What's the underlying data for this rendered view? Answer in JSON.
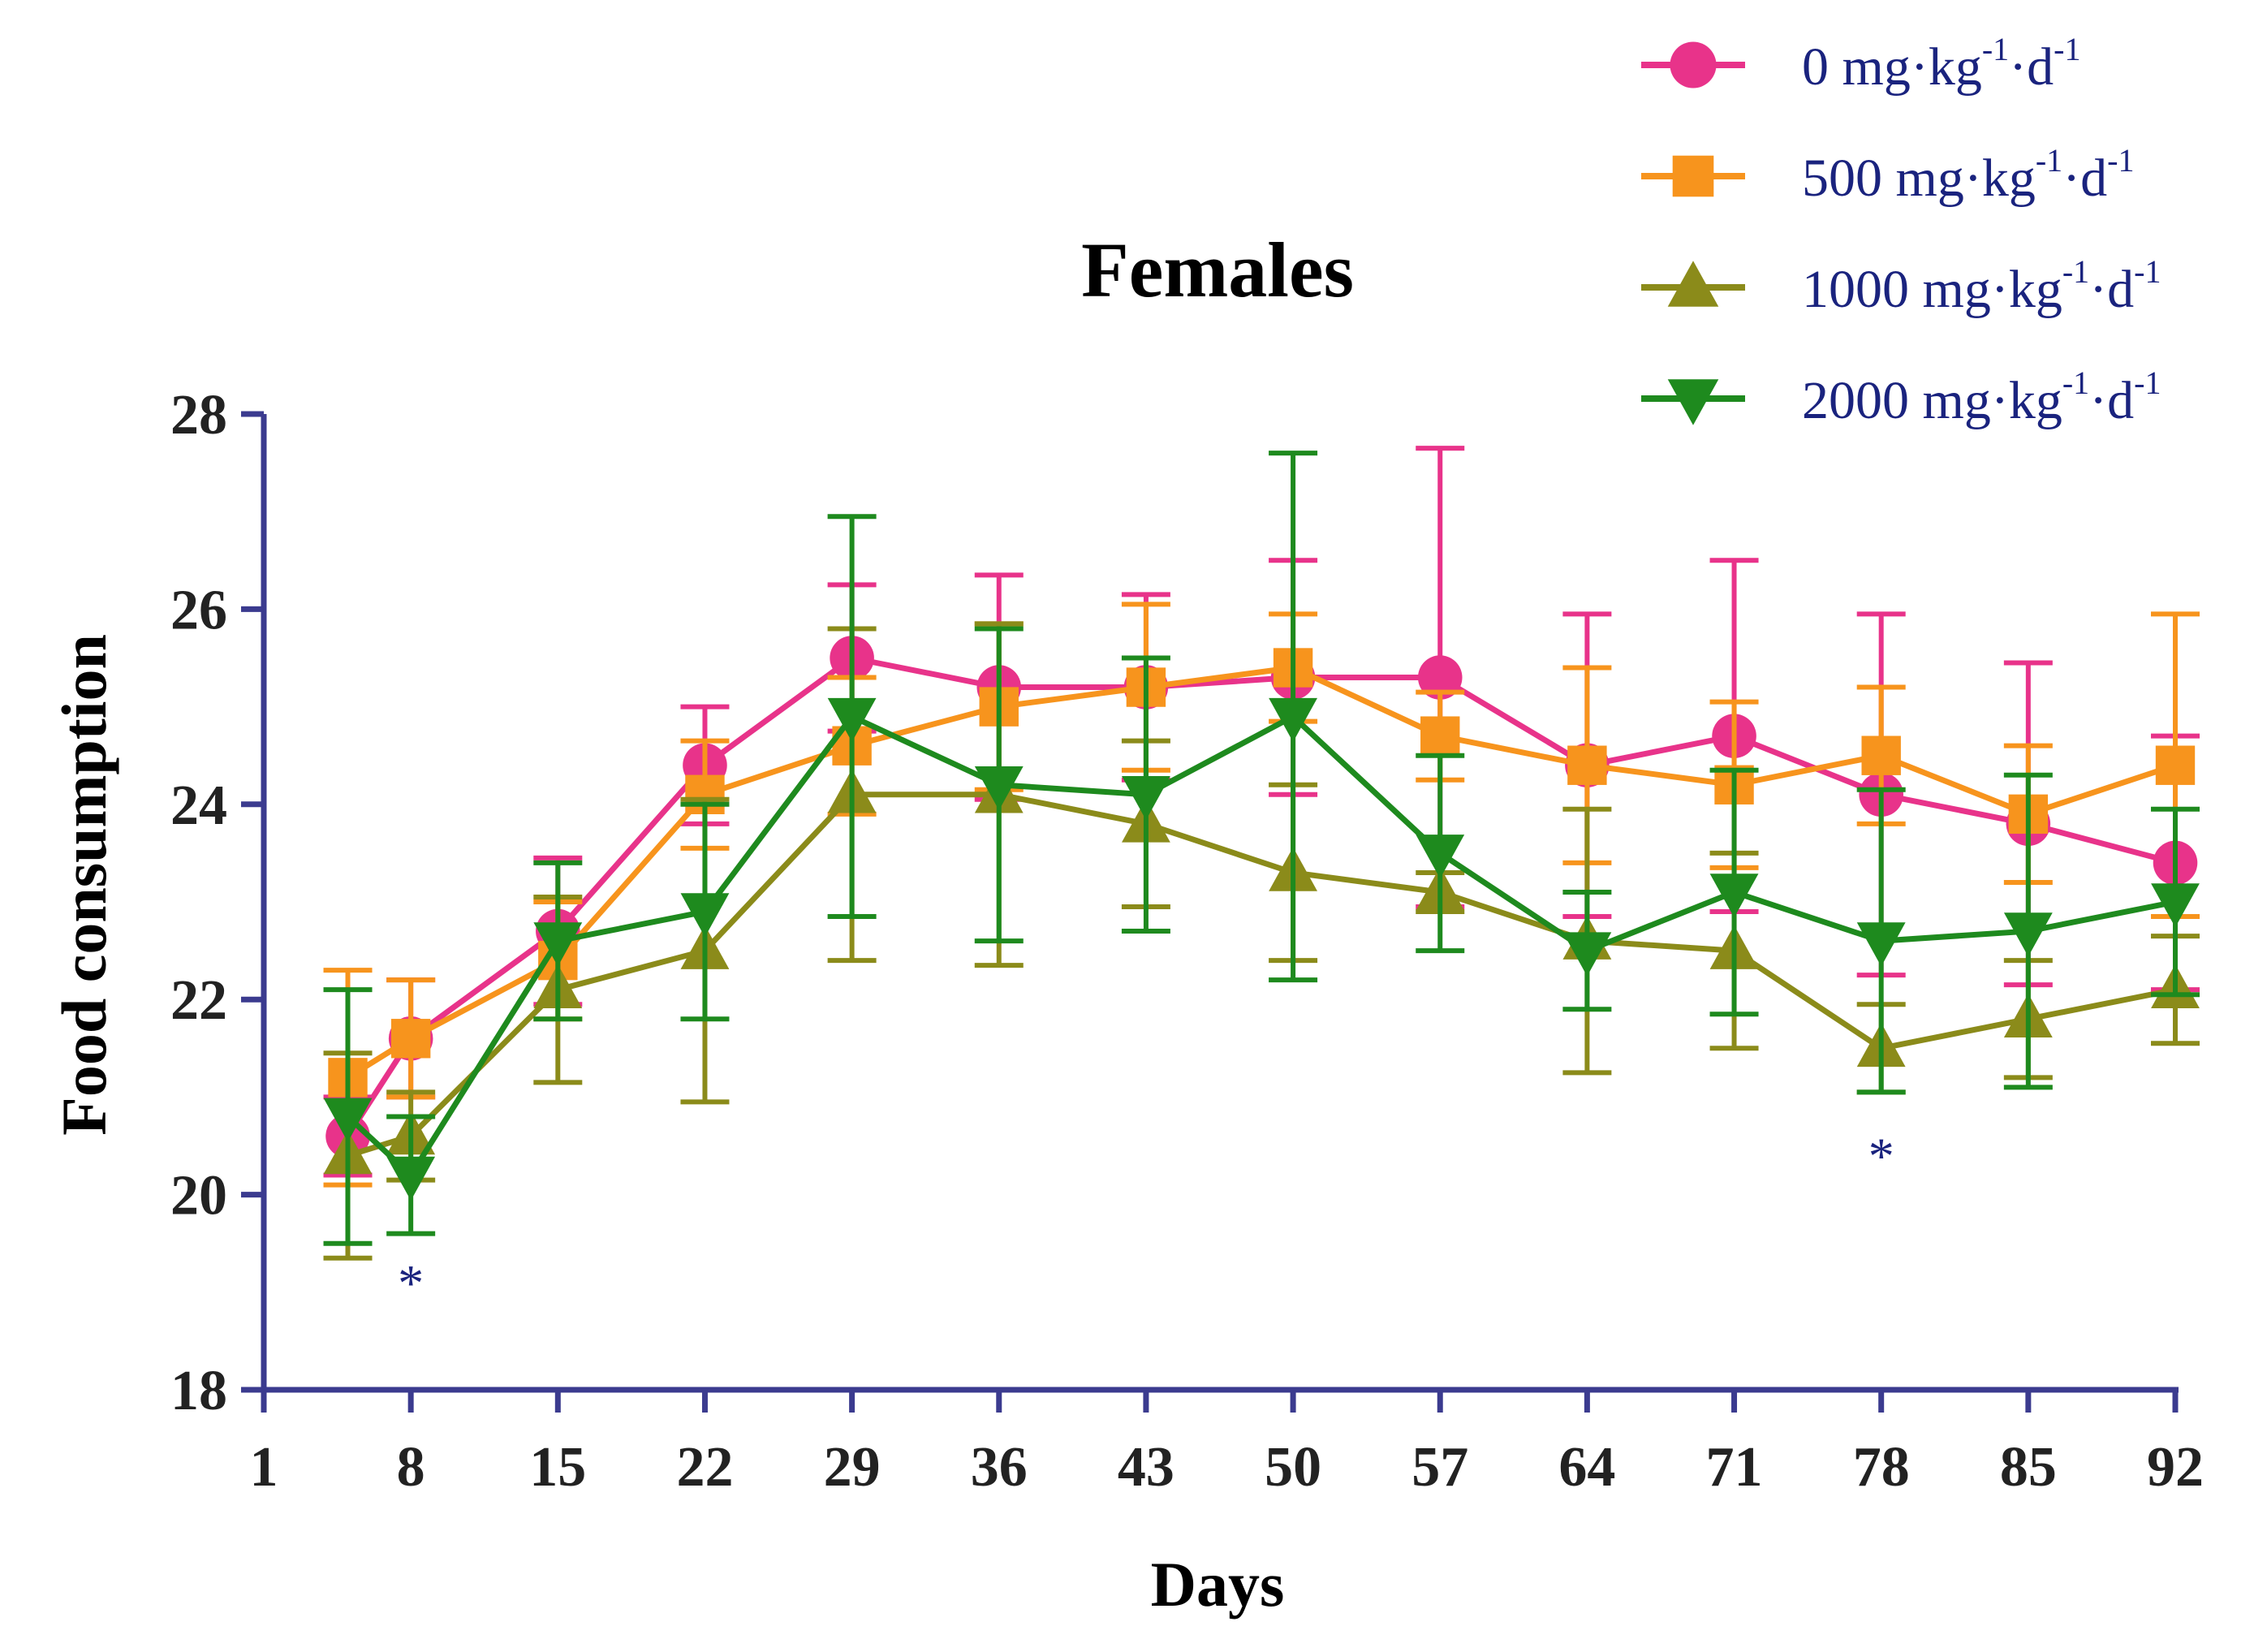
{
  "chart_data": {
    "type": "line",
    "title": "Females",
    "xlabel": "Days",
    "ylabel": "Food consumption",
    "xlim": [
      1,
      92
    ],
    "ylim": [
      18,
      28
    ],
    "xticks": [
      1,
      8,
      15,
      22,
      29,
      36,
      43,
      50,
      57,
      64,
      71,
      78,
      85,
      92
    ],
    "yticks": [
      18,
      20,
      22,
      24,
      26,
      28
    ],
    "x": [
      5,
      8,
      15,
      22,
      29,
      36,
      43,
      50,
      57,
      64,
      71,
      78,
      85,
      92
    ],
    "legend_position": "top-right",
    "series": [
      {
        "name": "0 mg·kg-1·d-1",
        "label_parts": {
          "num": "0",
          "text": " mg·kg",
          "sup1": "-1",
          "mid": "·d",
          "sup2": "-1"
        },
        "color": "#e8338a",
        "marker": "circle",
        "values": [
          20.6,
          21.6,
          22.7,
          24.4,
          25.5,
          25.2,
          25.2,
          25.3,
          25.3,
          24.4,
          24.7,
          24.1,
          23.8,
          23.4
        ],
        "err": [
          0.4,
          0.6,
          0.75,
          0.6,
          0.75,
          1.15,
          0.95,
          1.2,
          2.35,
          1.55,
          1.8,
          1.85,
          1.65,
          1.3
        ]
      },
      {
        "name": "500 mg·kg-1·d-1",
        "label_parts": {
          "num": "500",
          "text": " mg·kg",
          "sup1": "-1",
          "mid": "·d",
          "sup2": "-1"
        },
        "color": "#f7941d",
        "marker": "square",
        "values": [
          21.2,
          21.6,
          22.4,
          24.1,
          24.6,
          25.0,
          25.2,
          25.4,
          24.7,
          24.4,
          24.2,
          24.5,
          23.9,
          24.4
        ],
        "err": [
          1.1,
          0.6,
          0.6,
          0.55,
          0.7,
          0.85,
          0.85,
          0.55,
          0.45,
          1.0,
          0.85,
          0.7,
          0.7,
          1.55
        ]
      },
      {
        "name": "1000 mg·kg-1·d-1",
        "label_parts": {
          "num": "1000",
          "text": " mg·kg",
          "sup1": "-1",
          "mid": "·d",
          "sup2": "-1"
        },
        "color": "#8b8b1a",
        "marker": "triangle-up",
        "values": [
          20.4,
          20.6,
          22.1,
          22.5,
          24.1,
          24.1,
          23.8,
          23.3,
          23.1,
          22.6,
          22.5,
          21.5,
          21.8,
          22.1
        ],
        "err": [
          1.05,
          0.45,
          0.95,
          1.55,
          1.7,
          1.75,
          0.85,
          0.9,
          0.2,
          1.35,
          1.0,
          0.45,
          0.6,
          0.55
        ]
      },
      {
        "name": "2000 mg·kg-1·d-1",
        "label_parts": {
          "num": "2000",
          "text": " mg·kg",
          "sup1": "-1",
          "mid": "·d",
          "sup2": "-1"
        },
        "color": "#1e8a1e",
        "marker": "triangle-down",
        "values": [
          20.8,
          20.2,
          22.6,
          22.9,
          24.9,
          24.2,
          24.1,
          24.9,
          23.5,
          22.5,
          23.1,
          22.6,
          22.7,
          23.0
        ],
        "err": [
          1.3,
          0.6,
          0.8,
          1.1,
          2.05,
          1.6,
          1.4,
          2.7,
          1.0,
          0.6,
          1.25,
          1.55,
          1.6,
          0.95
        ]
      }
    ],
    "annotations": [
      {
        "text": "*",
        "x": 8,
        "y": 19.1
      },
      {
        "text": "*",
        "x": 78,
        "y": 20.4
      }
    ]
  }
}
